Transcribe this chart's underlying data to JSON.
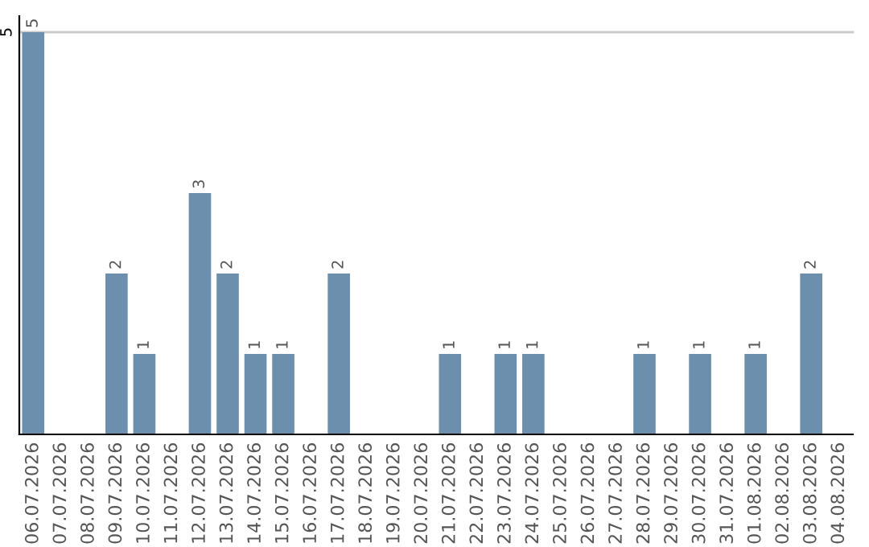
{
  "chart_data": {
    "type": "bar",
    "categories": [
      "06.07.2026",
      "07.07.2026",
      "08.07.2026",
      "09.07.2026",
      "10.07.2026",
      "11.07.2026",
      "12.07.2026",
      "13.07.2026",
      "14.07.2026",
      "15.07.2026",
      "16.07.2026",
      "17.07.2026",
      "18.07.2026",
      "19.07.2026",
      "20.07.2026",
      "21.07.2026",
      "22.07.2026",
      "23.07.2026",
      "24.07.2026",
      "25.07.2026",
      "26.07.2026",
      "27.07.2026",
      "28.07.2026",
      "29.07.2026",
      "30.07.2026",
      "31.07.2026",
      "01.08.2026",
      "02.08.2026",
      "03.08.2026",
      "04.08.2026"
    ],
    "values": [
      5,
      0,
      0,
      2,
      1,
      0,
      3,
      2,
      1,
      1,
      0,
      2,
      0,
      0,
      0,
      1,
      0,
      1,
      1,
      0,
      0,
      0,
      1,
      0,
      1,
      0,
      1,
      0,
      2,
      0
    ],
    "value_labels": [
      "5",
      null,
      null,
      "2",
      "1",
      null,
      "3",
      "2",
      "1",
      "1",
      null,
      "2",
      null,
      null,
      null,
      "1",
      null,
      "1",
      "1",
      null,
      null,
      null,
      "1",
      null,
      "1",
      null,
      "1",
      null,
      "2",
      null
    ],
    "color": "#6b8fad",
    "ylim": [
      0,
      5.2
    ],
    "yticks": [
      5
    ],
    "grid": "y"
  }
}
